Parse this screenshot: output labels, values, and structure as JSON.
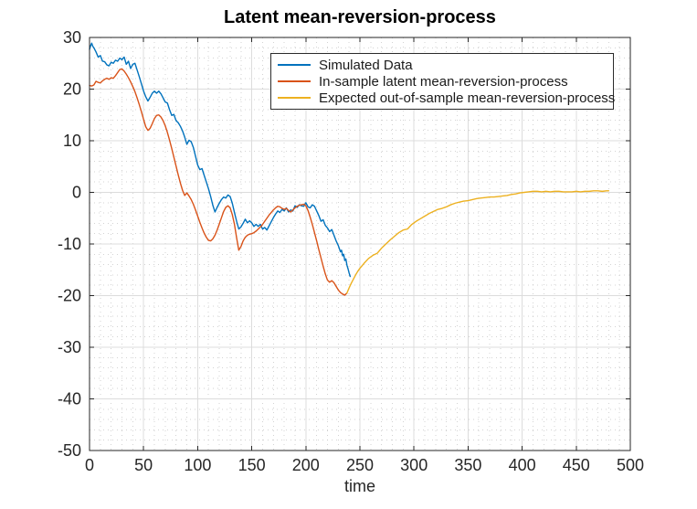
{
  "figure": {
    "background": "#ffffff"
  },
  "chart_data": {
    "type": "line",
    "title": "Latent mean-reversion-process",
    "xlabel": "time",
    "ylabel": "",
    "xlim": [
      0,
      500
    ],
    "ylim": [
      -50,
      30
    ],
    "xticks": [
      0,
      50,
      100,
      150,
      200,
      250,
      300,
      350,
      400,
      450,
      500
    ],
    "yticks": [
      -50,
      -40,
      -30,
      -20,
      -10,
      0,
      10,
      20,
      30
    ],
    "grid": true,
    "minor_grid": true,
    "minor_x_step": 10,
    "minor_y_step": 2,
    "axis_color": "#262626",
    "grid_color": "#dcdcdc",
    "minor_grid_color": "#c9c9c9",
    "legend": {
      "position": "northeast",
      "entries": [
        "Simulated Data",
        "In-sample latent mean-reversion-process",
        "Expected out-of-sample mean-reversion-process"
      ]
    },
    "series": [
      {
        "name": "Simulated Data",
        "color": "#0072BD",
        "points": [
          [
            0,
            27.7
          ],
          [
            1,
            28.4
          ],
          [
            2,
            28.9
          ],
          [
            3,
            28.3
          ],
          [
            4,
            28.0
          ],
          [
            6,
            27.2
          ],
          [
            8,
            26.2
          ],
          [
            10,
            26.5
          ],
          [
            12,
            25.4
          ],
          [
            14,
            25.3
          ],
          [
            16,
            24.7
          ],
          [
            18,
            24.5
          ],
          [
            20,
            25.2
          ],
          [
            22,
            25.0
          ],
          [
            24,
            25.6
          ],
          [
            26,
            25.4
          ],
          [
            28,
            26.0
          ],
          [
            30,
            25.7
          ],
          [
            32,
            26.2
          ],
          [
            34,
            24.8
          ],
          [
            36,
            25.4
          ],
          [
            38,
            24.0
          ],
          [
            40,
            24.8
          ],
          [
            42,
            25.0
          ],
          [
            44,
            23.7
          ],
          [
            46,
            22.4
          ],
          [
            48,
            21.0
          ],
          [
            50,
            19.6
          ],
          [
            52,
            18.5
          ],
          [
            54,
            17.7
          ],
          [
            56,
            18.4
          ],
          [
            58,
            19.2
          ],
          [
            60,
            19.6
          ],
          [
            62,
            19.2
          ],
          [
            64,
            19.6
          ],
          [
            66,
            19.1
          ],
          [
            68,
            18.3
          ],
          [
            70,
            17.5
          ],
          [
            72,
            17.3
          ],
          [
            74,
            16.0
          ],
          [
            76,
            14.9
          ],
          [
            78,
            15.1
          ],
          [
            80,
            13.9
          ],
          [
            82,
            13.5
          ],
          [
            84,
            12.8
          ],
          [
            86,
            11.9
          ],
          [
            88,
            10.7
          ],
          [
            90,
            9.3
          ],
          [
            92,
            10.1
          ],
          [
            94,
            9.8
          ],
          [
            96,
            8.7
          ],
          [
            98,
            7.0
          ],
          [
            100,
            5.3
          ],
          [
            102,
            4.4
          ],
          [
            104,
            4.6
          ],
          [
            106,
            3.3
          ],
          [
            108,
            2.0
          ],
          [
            110,
            0.7
          ],
          [
            112,
            -0.8
          ],
          [
            114,
            -2.5
          ],
          [
            116,
            -3.8
          ],
          [
            118,
            -2.9
          ],
          [
            120,
            -2.1
          ],
          [
            122,
            -1.4
          ],
          [
            124,
            -0.9
          ],
          [
            126,
            -1.1
          ],
          [
            128,
            -0.5
          ],
          [
            130,
            -0.8
          ],
          [
            132,
            -2.1
          ],
          [
            134,
            -3.9
          ],
          [
            136,
            -5.6
          ],
          [
            138,
            -7.1
          ],
          [
            140,
            -6.7
          ],
          [
            142,
            -6.0
          ],
          [
            144,
            -5.2
          ],
          [
            146,
            -5.9
          ],
          [
            148,
            -5.5
          ],
          [
            150,
            -5.9
          ],
          [
            152,
            -6.6
          ],
          [
            154,
            -6.2
          ],
          [
            156,
            -6.6
          ],
          [
            158,
            -6.2
          ],
          [
            160,
            -7.1
          ],
          [
            162,
            -6.8
          ],
          [
            164,
            -7.3
          ],
          [
            166,
            -6.5
          ],
          [
            168,
            -5.7
          ],
          [
            170,
            -4.9
          ],
          [
            172,
            -4.2
          ],
          [
            174,
            -3.6
          ],
          [
            176,
            -3.9
          ],
          [
            178,
            -3.3
          ],
          [
            180,
            -3.6
          ],
          [
            182,
            -3.0
          ],
          [
            184,
            -3.8
          ],
          [
            186,
            -3.4
          ],
          [
            188,
            -3.6
          ],
          [
            190,
            -2.6
          ],
          [
            192,
            -2.9
          ],
          [
            194,
            -2.4
          ],
          [
            196,
            -2.6
          ],
          [
            198,
            -2.7
          ],
          [
            200,
            -2.0
          ],
          [
            202,
            -2.8
          ],
          [
            204,
            -3.0
          ],
          [
            206,
            -2.4
          ],
          [
            208,
            -2.7
          ],
          [
            210,
            -3.6
          ],
          [
            212,
            -4.5
          ],
          [
            214,
            -5.6
          ],
          [
            216,
            -5.3
          ],
          [
            218,
            -6.4
          ],
          [
            220,
            -6.9
          ],
          [
            222,
            -7.6
          ],
          [
            224,
            -7.2
          ],
          [
            226,
            -8.3
          ],
          [
            228,
            -9.4
          ],
          [
            230,
            -10.3
          ],
          [
            232,
            -11.5
          ],
          [
            233,
            -11.2
          ],
          [
            234,
            -12.3
          ],
          [
            235,
            -12.0
          ],
          [
            236,
            -13.2
          ],
          [
            237,
            -12.9
          ],
          [
            238,
            -14.1
          ],
          [
            239,
            -14.8
          ],
          [
            240,
            -15.6
          ],
          [
            241,
            -16.3
          ]
        ]
      },
      {
        "name": "In-sample latent mean-reversion-process",
        "color": "#D95319",
        "points": [
          [
            0,
            20.7
          ],
          [
            2,
            20.6
          ],
          [
            4,
            20.8
          ],
          [
            6,
            21.5
          ],
          [
            8,
            21.3
          ],
          [
            10,
            21.2
          ],
          [
            12,
            21.6
          ],
          [
            14,
            21.9
          ],
          [
            16,
            22.1
          ],
          [
            18,
            21.9
          ],
          [
            20,
            22.2
          ],
          [
            22,
            22.1
          ],
          [
            24,
            22.6
          ],
          [
            26,
            23.2
          ],
          [
            28,
            23.8
          ],
          [
            30,
            23.9
          ],
          [
            32,
            23.5
          ],
          [
            34,
            22.9
          ],
          [
            36,
            22.2
          ],
          [
            38,
            21.4
          ],
          [
            40,
            20.5
          ],
          [
            42,
            19.5
          ],
          [
            44,
            18.3
          ],
          [
            46,
            17.0
          ],
          [
            48,
            15.6
          ],
          [
            50,
            14.1
          ],
          [
            52,
            12.7
          ],
          [
            54,
            12.0
          ],
          [
            56,
            12.4
          ],
          [
            58,
            13.3
          ],
          [
            60,
            14.3
          ],
          [
            62,
            14.9
          ],
          [
            64,
            15.0
          ],
          [
            66,
            14.6
          ],
          [
            68,
            13.9
          ],
          [
            70,
            12.9
          ],
          [
            72,
            11.6
          ],
          [
            74,
            10.1
          ],
          [
            76,
            8.5
          ],
          [
            78,
            6.8
          ],
          [
            80,
            5.1
          ],
          [
            82,
            3.4
          ],
          [
            84,
            1.8
          ],
          [
            86,
            0.4
          ],
          [
            88,
            -0.6
          ],
          [
            90,
            -0.1
          ],
          [
            92,
            -0.7
          ],
          [
            94,
            -1.4
          ],
          [
            96,
            -2.3
          ],
          [
            98,
            -3.4
          ],
          [
            100,
            -4.6
          ],
          [
            102,
            -5.8
          ],
          [
            104,
            -6.9
          ],
          [
            106,
            -7.9
          ],
          [
            108,
            -8.7
          ],
          [
            110,
            -9.3
          ],
          [
            112,
            -9.4
          ],
          [
            114,
            -9.0
          ],
          [
            116,
            -8.3
          ],
          [
            118,
            -7.3
          ],
          [
            120,
            -6.1
          ],
          [
            122,
            -4.9
          ],
          [
            124,
            -3.7
          ],
          [
            126,
            -2.9
          ],
          [
            128,
            -2.6
          ],
          [
            130,
            -3.0
          ],
          [
            132,
            -4.3
          ],
          [
            134,
            -6.2
          ],
          [
            136,
            -8.8
          ],
          [
            138,
            -11.2
          ],
          [
            140,
            -10.5
          ],
          [
            142,
            -9.4
          ],
          [
            144,
            -8.7
          ],
          [
            146,
            -8.3
          ],
          [
            148,
            -8.1
          ],
          [
            150,
            -8.0
          ],
          [
            152,
            -7.8
          ],
          [
            154,
            -7.5
          ],
          [
            156,
            -7.1
          ],
          [
            158,
            -6.7
          ],
          [
            160,
            -6.2
          ],
          [
            162,
            -5.6
          ],
          [
            164,
            -5.0
          ],
          [
            166,
            -4.4
          ],
          [
            168,
            -3.9
          ],
          [
            170,
            -3.4
          ],
          [
            172,
            -3.0
          ],
          [
            174,
            -2.7
          ],
          [
            176,
            -2.8
          ],
          [
            178,
            -3.1
          ],
          [
            180,
            -3.3
          ],
          [
            182,
            -3.1
          ],
          [
            184,
            -3.5
          ],
          [
            186,
            -3.8
          ],
          [
            188,
            -3.4
          ],
          [
            190,
            -3.0
          ],
          [
            192,
            -2.7
          ],
          [
            194,
            -2.5
          ],
          [
            196,
            -2.4
          ],
          [
            198,
            -2.3
          ],
          [
            200,
            -2.6
          ],
          [
            202,
            -3.5
          ],
          [
            204,
            -4.8
          ],
          [
            206,
            -6.2
          ],
          [
            208,
            -7.8
          ],
          [
            210,
            -9.4
          ],
          [
            212,
            -11.1
          ],
          [
            214,
            -12.7
          ],
          [
            216,
            -14.3
          ],
          [
            218,
            -15.8
          ],
          [
            220,
            -17.0
          ],
          [
            222,
            -17.4
          ],
          [
            224,
            -17.1
          ],
          [
            226,
            -17.5
          ],
          [
            228,
            -18.2
          ],
          [
            230,
            -18.9
          ],
          [
            232,
            -19.4
          ],
          [
            234,
            -19.7
          ],
          [
            236,
            -19.9
          ],
          [
            238,
            -19.5
          ]
        ]
      },
      {
        "name": "Expected out-of-sample mean-reversion-process",
        "color": "#EDB120",
        "points": [
          [
            238,
            -19.5
          ],
          [
            240,
            -18.5
          ],
          [
            242,
            -17.6
          ],
          [
            244,
            -16.8
          ],
          [
            246,
            -16.0
          ],
          [
            248,
            -15.3
          ],
          [
            250,
            -14.7
          ],
          [
            254,
            -13.7
          ],
          [
            258,
            -12.8
          ],
          [
            262,
            -12.2
          ],
          [
            266,
            -11.8
          ],
          [
            270,
            -10.8
          ],
          [
            274,
            -10.0
          ],
          [
            278,
            -9.2
          ],
          [
            282,
            -8.5
          ],
          [
            286,
            -7.8
          ],
          [
            290,
            -7.3
          ],
          [
            294,
            -7.1
          ],
          [
            298,
            -6.2
          ],
          [
            302,
            -5.6
          ],
          [
            306,
            -5.1
          ],
          [
            310,
            -4.6
          ],
          [
            314,
            -4.1
          ],
          [
            318,
            -3.7
          ],
          [
            322,
            -3.3
          ],
          [
            326,
            -3.1
          ],
          [
            330,
            -2.8
          ],
          [
            334,
            -2.4
          ],
          [
            338,
            -2.1
          ],
          [
            342,
            -1.9
          ],
          [
            346,
            -1.7
          ],
          [
            350,
            -1.6
          ],
          [
            354,
            -1.4
          ],
          [
            358,
            -1.2
          ],
          [
            362,
            -1.1
          ],
          [
            366,
            -1.0
          ],
          [
            370,
            -0.9
          ],
          [
            374,
            -0.9
          ],
          [
            378,
            -0.8
          ],
          [
            382,
            -0.7
          ],
          [
            386,
            -0.6
          ],
          [
            390,
            -0.4
          ],
          [
            394,
            -0.3
          ],
          [
            398,
            -0.1
          ],
          [
            402,
            0.0
          ],
          [
            406,
            0.1
          ],
          [
            410,
            0.2
          ],
          [
            414,
            0.2
          ],
          [
            418,
            0.1
          ],
          [
            422,
            0.2
          ],
          [
            426,
            0.1
          ],
          [
            430,
            0.2
          ],
          [
            434,
            0.2
          ],
          [
            438,
            0.1
          ],
          [
            442,
            0.1
          ],
          [
            446,
            0.1
          ],
          [
            450,
            0.2
          ],
          [
            454,
            0.1
          ],
          [
            458,
            0.2
          ],
          [
            462,
            0.2
          ],
          [
            466,
            0.3
          ],
          [
            470,
            0.3
          ],
          [
            474,
            0.2
          ],
          [
            478,
            0.3
          ],
          [
            480,
            0.3
          ]
        ]
      }
    ]
  }
}
